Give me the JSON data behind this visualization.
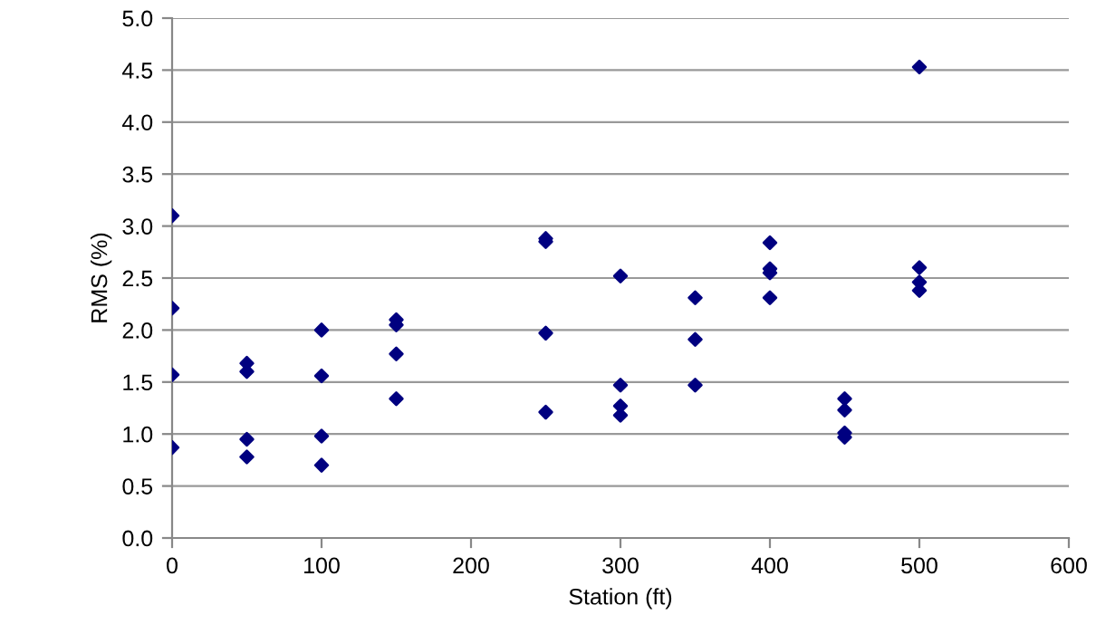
{
  "chart_data": {
    "type": "scatter",
    "xlabel": "Station (ft)",
    "ylabel": "RMS (%)",
    "x": [
      0,
      0,
      0,
      0,
      50,
      50,
      50,
      50,
      100,
      100,
      100,
      100,
      150,
      150,
      150,
      150,
      250,
      250,
      250,
      250,
      300,
      300,
      300,
      300,
      350,
      350,
      350,
      400,
      400,
      400,
      400,
      450,
      450,
      450,
      450,
      500,
      500,
      500,
      500
    ],
    "series": [
      {
        "color": "#000080",
        "values": [
          3.1,
          2.21,
          1.57,
          0.87,
          1.68,
          1.6,
          0.95,
          0.78,
          2.0,
          1.56,
          0.98,
          0.7,
          2.1,
          2.05,
          1.77,
          1.34,
          2.88,
          2.85,
          1.97,
          1.21,
          2.52,
          1.47,
          1.27,
          1.18,
          2.31,
          1.91,
          1.47,
          2.84,
          2.59,
          2.55,
          2.31,
          1.34,
          1.23,
          1.01,
          0.97,
          4.53,
          2.6,
          2.46,
          2.38
        ]
      }
    ],
    "xlim": [
      0,
      600
    ],
    "xticks": [
      0,
      100,
      200,
      300,
      400,
      500,
      600
    ],
    "ylim": [
      0,
      5
    ],
    "yticks": [
      {
        "value": 0,
        "label": "0.0"
      },
      {
        "value": 0.5,
        "label": "0.5"
      },
      {
        "value": 1,
        "label": "1.0"
      },
      {
        "value": 1.5,
        "label": "1.5"
      },
      {
        "value": 2,
        "label": "2.0"
      },
      {
        "value": 2.5,
        "label": "2.5"
      },
      {
        "value": 3,
        "label": "3.0"
      },
      {
        "value": 3.5,
        "label": "3.5"
      },
      {
        "value": 4,
        "label": "4.0"
      },
      {
        "value": 4.5,
        "label": "4.5"
      },
      {
        "value": 5,
        "label": "5.0"
      }
    ],
    "grid": "y",
    "marker": "diamond",
    "legend": false
  }
}
